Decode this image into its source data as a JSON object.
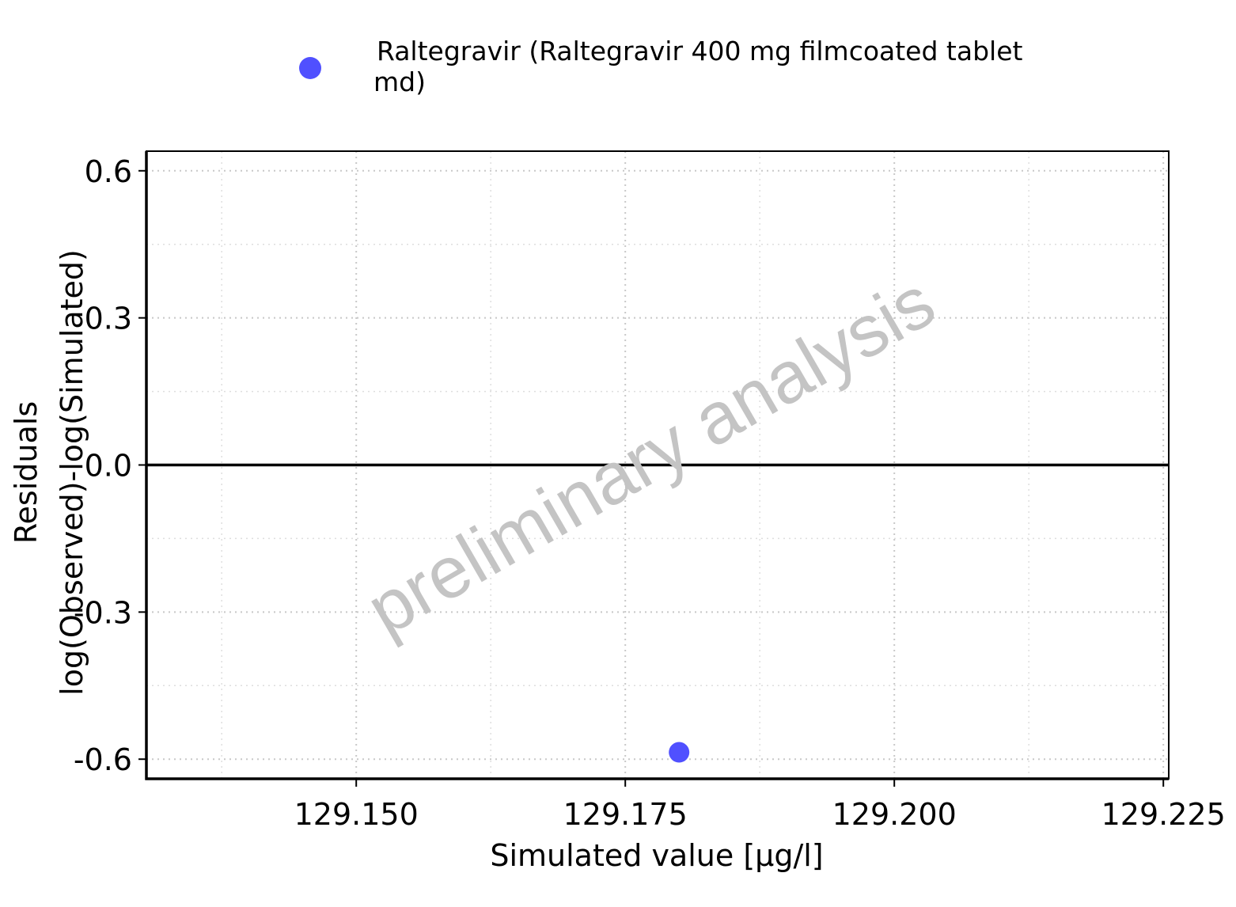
{
  "chart_data": {
    "type": "scatter",
    "title": "",
    "xlabel": "Simulated value [µg/l]",
    "ylabel_line1": "Residuals",
    "ylabel_line2": "log(Observed)-log(Simulated)",
    "xlim": [
      129.1305,
      129.2255
    ],
    "ylim": [
      -0.64,
      0.64
    ],
    "x_ticks": [
      129.15,
      129.175,
      129.2,
      129.225
    ],
    "x_tick_labels": [
      "129.150",
      "129.175",
      "129.200",
      "129.225"
    ],
    "y_ticks": [
      0.6,
      0.3,
      0.0,
      -0.3,
      -0.6
    ],
    "y_tick_labels": [
      "0.6",
      "0.3",
      "0.0",
      "-0.3",
      "-0.6"
    ],
    "reference_line_y": 0,
    "grid": true,
    "legend_position": "top",
    "series": [
      {
        "name": "Raltegravir (Raltegravir 400 mg filmcoated tablet md)",
        "legend_lines": [
          "Raltegravir (Raltegravir 400 mg filmcoated tablet",
          "md)"
        ],
        "color": "#5050ff",
        "points": [
          {
            "x": 129.18,
            "y": -0.586
          }
        ]
      }
    ],
    "watermark": "preliminary analysis"
  }
}
